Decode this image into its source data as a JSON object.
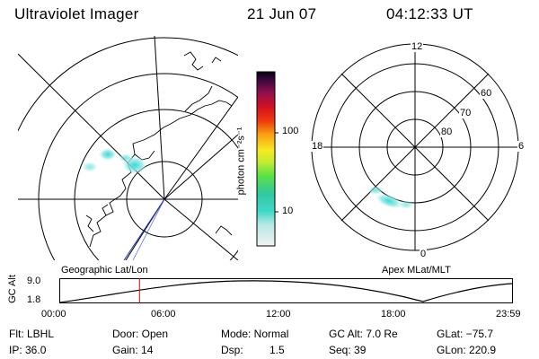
{
  "header": {
    "title": "Ultraviolet Imager",
    "date": "21 Jun 07",
    "time": "04:12:33 UT"
  },
  "colorbar": {
    "unit_label": "photon cm⁻²s⁻¹",
    "tick_100": "100",
    "tick_10": "10"
  },
  "polar_right": {
    "mlt_labels": {
      "top": "12",
      "bottom": "0",
      "left": "18",
      "right": "6"
    },
    "lat_labels": {
      "60": "60",
      "70": "70",
      "80": "80"
    }
  },
  "panel_labels": {
    "left": "Geographic Lat/Lon",
    "right": "Apex MLat/MLT"
  },
  "altitude_plot": {
    "ylabel": "GC Alt",
    "ymax_label": "9.0",
    "ymin_label": "1.8",
    "x_ticks": [
      "00:00",
      "06:00",
      "12:00",
      "18:00",
      "23:59"
    ],
    "current_time_fraction": 0.1755
  },
  "info": {
    "flt": "Flt: LBHL",
    "ip": "IP: 36.0",
    "door": "Door: Open",
    "gain": "Gain: 14",
    "mode": "Mode: Normal",
    "dsp_label": "Dsp:",
    "dsp_value": "1.5",
    "gc_alt": "GC Alt: 7.0 Re",
    "seq": "Seq: 39",
    "glat": "GLat: −75.7",
    "glon": "GLon: 220.9"
  },
  "colors": {
    "aurora": "#33d9d6",
    "time_marker": "#e00000",
    "meridian": "#2038c8"
  }
}
